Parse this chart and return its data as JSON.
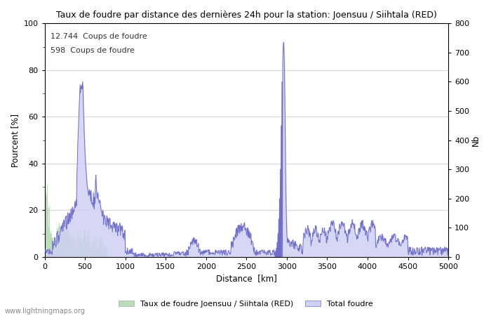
{
  "title": "Taux de foudre par distance des dernières 24h pour la station: Joensuu / Siihtala (RED)",
  "xlabel": "Distance  [km]",
  "ylabel_left": "Pourcent [%]",
  "ylabel_right": "Nb",
  "xlim": [
    0,
    5000
  ],
  "ylim_left": [
    0,
    100
  ],
  "ylim_right": [
    0,
    800
  ],
  "xticks": [
    0,
    500,
    1000,
    1500,
    2000,
    2500,
    3000,
    3500,
    4000,
    4500,
    5000
  ],
  "yticks_left": [
    0,
    20,
    40,
    60,
    80,
    100
  ],
  "yticks_right": [
    0,
    100,
    200,
    300,
    400,
    500,
    600,
    700,
    800
  ],
  "annotation1": "12.744  Coups de foudre",
  "annotation2": "598  Coups de foudre",
  "legend_label_green": "Taux de foudre Joensuu / Siihtala (RED)",
  "legend_label_blue": "Total foudre",
  "green_color": "#b8ddb8",
  "green_edge_color": "#90c090",
  "blue_fill_color": "#d0d0f4",
  "blue_line_color": "#7070cc",
  "watermark": "www.lightningmaps.org",
  "bg_color": "#ffffff",
  "grid_color": "#cccccc"
}
